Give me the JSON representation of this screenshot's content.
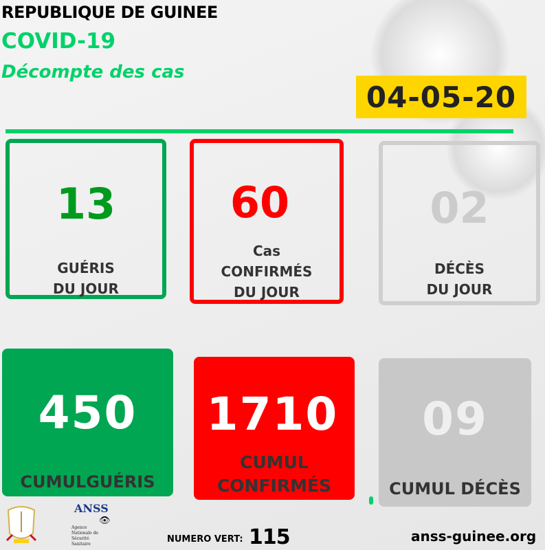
{
  "header": {
    "country": "REPUBLIQUE DE GUINEE",
    "title": "COVID-19",
    "subtitle": "Décompte des cas",
    "date": "04-05-20"
  },
  "colors": {
    "green": "#00d26a",
    "dark_green": "#00a651",
    "red": "#ff0000",
    "grey": "#c8c8c8",
    "yellow": "#ffd500"
  },
  "daily": [
    {
      "value": "13",
      "label1": "GUÉRIS",
      "label2": "DU JOUR"
    },
    {
      "value": "60",
      "label0": "Cas",
      "label1": "CONFIRMÉS",
      "label2": "DU JOUR"
    },
    {
      "value": "02",
      "label1": "DÉCÈS",
      "label2": "DU JOUR"
    }
  ],
  "cumulative": [
    {
      "value": "450",
      "label": "CUMULGUÉRIS"
    },
    {
      "value": "1710",
      "label1": "CUMUL",
      "label2": "CONFIRMÉS"
    },
    {
      "value": "09",
      "label": "CUMUL DÉCÈS"
    }
  ],
  "footer": {
    "anss_logo": "ANSS",
    "anss_name": [
      "Agence",
      "Nationale de",
      "Sécurité",
      "Sanitaire"
    ],
    "hotline_label": "NUMERO VERT:",
    "hotline": "115",
    "website": "anss-guinee.org"
  }
}
